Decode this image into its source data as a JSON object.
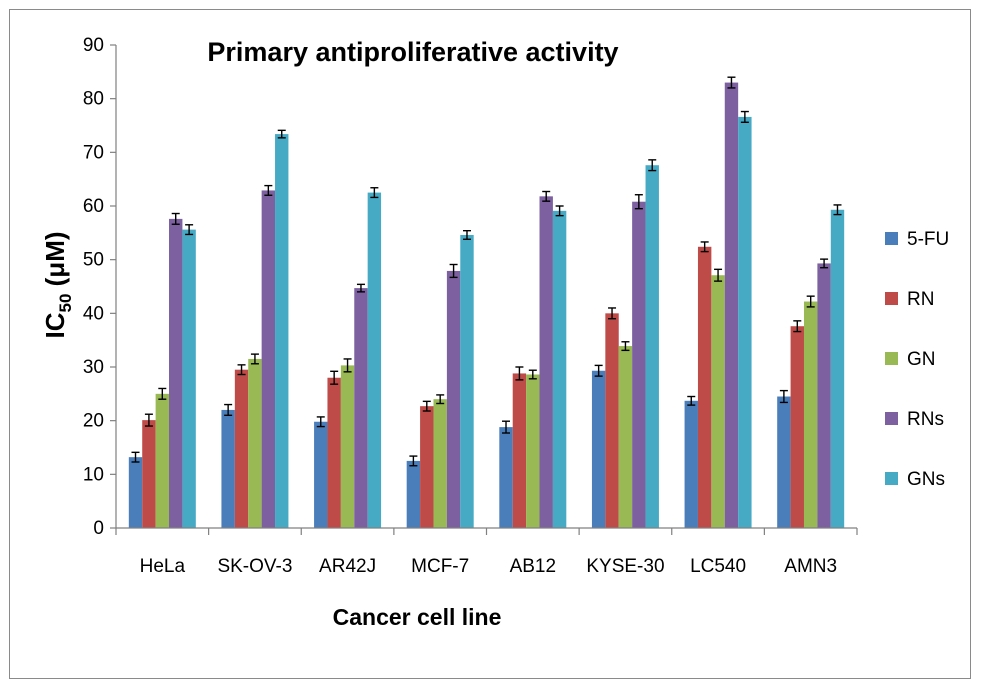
{
  "chart_data": {
    "type": "bar",
    "title": "Primary antiproliferative activity",
    "xlabel": "Cancer cell line",
    "ylabel": {
      "main": "IC",
      "sub": "50",
      "rest": " (μM)"
    },
    "ylim": [
      0,
      90
    ],
    "yticks": [
      "0",
      "10",
      "20",
      "30",
      "40",
      "50",
      "60",
      "70",
      "80",
      "90"
    ],
    "grid": false,
    "legend_position": "right",
    "categories": [
      "HeLa",
      "SK-OV-3",
      "AR42J",
      "MCF-7",
      "AB12",
      "KYSE-30",
      "LC540",
      "AMN3"
    ],
    "series": [
      {
        "name": "5-FU",
        "color": "#4a7ebb",
        "values": [
          13.2,
          22.0,
          19.8,
          12.5,
          18.8,
          29.3,
          23.7,
          24.5
        ],
        "errors": [
          0.9,
          1.0,
          0.9,
          0.9,
          1.1,
          1.0,
          0.8,
          1.1
        ]
      },
      {
        "name": "RN",
        "color": "#be4b48",
        "values": [
          20.1,
          29.5,
          28.0,
          22.7,
          28.8,
          40.0,
          52.4,
          37.6
        ],
        "errors": [
          1.1,
          0.9,
          1.2,
          0.9,
          1.2,
          1.0,
          0.9,
          1.0
        ]
      },
      {
        "name": "GN",
        "color": "#98b954",
        "values": [
          25.0,
          31.5,
          30.3,
          24.0,
          28.6,
          33.9,
          47.1,
          42.2
        ],
        "errors": [
          1.0,
          0.9,
          1.2,
          0.8,
          0.8,
          0.8,
          1.1,
          1.0
        ]
      },
      {
        "name": "RNs",
        "color": "#7d60a0",
        "values": [
          57.6,
          62.9,
          44.7,
          47.9,
          61.8,
          60.8,
          83.0,
          49.3
        ],
        "errors": [
          1.0,
          0.9,
          0.7,
          1.2,
          0.9,
          1.3,
          1.0,
          0.8
        ]
      },
      {
        "name": "GNs",
        "color": "#46aac5",
        "values": [
          55.6,
          73.4,
          62.5,
          54.6,
          59.1,
          67.6,
          76.6,
          59.3
        ],
        "errors": [
          0.9,
          0.7,
          0.9,
          0.8,
          0.9,
          1.0,
          1.0,
          0.9
        ]
      }
    ]
  }
}
